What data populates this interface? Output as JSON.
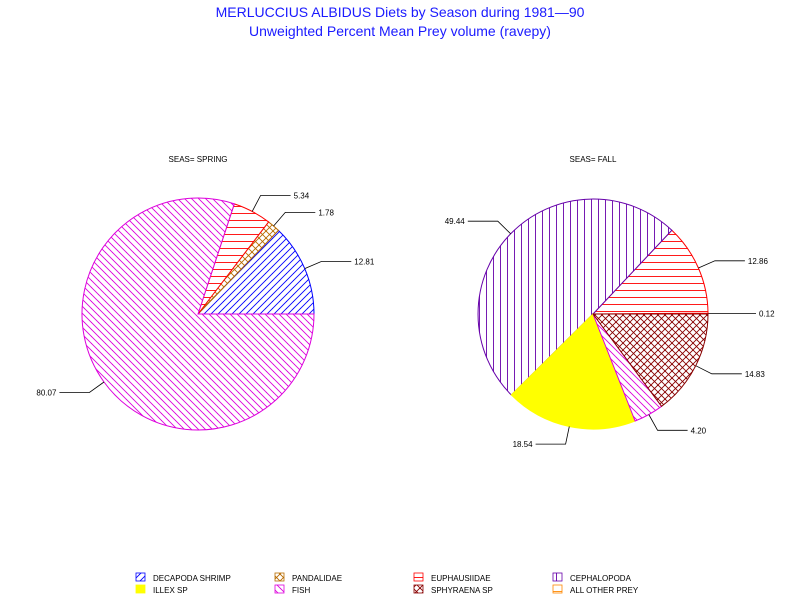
{
  "chart_data": {
    "type": "pie",
    "title": "MERLUCCIUS ALBIDUS Diets by Season during 1981—90",
    "subtitle": "Unweighted Percent Mean Prey volume (ravepy)",
    "legend_position": "bottom",
    "legend": [
      {
        "name": "DECAPODA SHRIMP",
        "color": "#0000ff",
        "pattern": "diag-up"
      },
      {
        "name": "PANDALIDAE",
        "color": "#b86b00",
        "pattern": "cross-diag"
      },
      {
        "name": "EUPHAUSIIDAE",
        "color": "#ff0000",
        "pattern": "horizontal"
      },
      {
        "name": "CEPHALOPODA",
        "color": "#6600aa",
        "pattern": "vertical"
      },
      {
        "name": "ILLEX SP",
        "color": "#ffff00",
        "pattern": "solid"
      },
      {
        "name": "FISH",
        "color": "#dd00dd",
        "pattern": "diag-down"
      },
      {
        "name": "SPHYRAENA SP",
        "color": "#880000",
        "pattern": "cross-diag"
      },
      {
        "name": "ALL OTHER PREY",
        "color": "#ff8800",
        "pattern": "horizontal"
      }
    ],
    "pies": [
      {
        "label": "SEAS= SPRING",
        "slices": [
          {
            "category": "DECAPODA SHRIMP",
            "value": 12.81,
            "label": "12.81"
          },
          {
            "category": "PANDALIDAE",
            "value": 1.78,
            "label": "1.78"
          },
          {
            "category": "EUPHAUSIIDAE",
            "value": 5.34,
            "label": "5.34"
          },
          {
            "category": "FISH",
            "value": 80.07,
            "label": "80.07"
          }
        ]
      },
      {
        "label": "SEAS= FALL",
        "slices": [
          {
            "category": "ALL OTHER PREY",
            "value": 0.12,
            "label": "0.12"
          },
          {
            "category": "EUPHAUSIIDAE",
            "value": 12.86,
            "label": "12.86"
          },
          {
            "category": "CEPHALOPODA",
            "value": 49.44,
            "label": "49.44"
          },
          {
            "category": "ILLEX SP",
            "value": 18.54,
            "label": "18.54"
          },
          {
            "category": "FISH",
            "value": 4.2,
            "label": "4.20"
          },
          {
            "category": "SPHYRAENA SP",
            "value": 14.83,
            "label": "14.83"
          }
        ]
      }
    ]
  }
}
